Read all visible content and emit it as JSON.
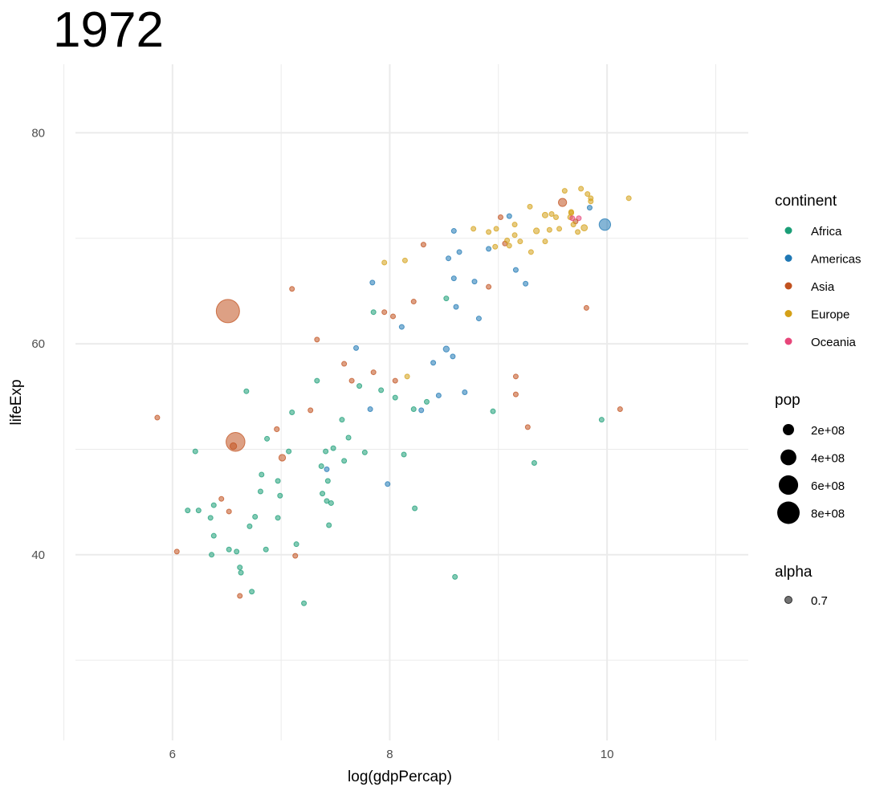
{
  "chart_data": {
    "type": "scatter",
    "title": "1972",
    "xlabel": "log(gdpPercap)",
    "ylabel": "lifeExp",
    "xlim": [
      4.9,
      11.3
    ],
    "ylim": [
      22.4,
      86.5
    ],
    "x_ticks": [
      6,
      8,
      10
    ],
    "x_tick_labels": [
      "6",
      "8",
      "10"
    ],
    "y_ticks": [
      40,
      60,
      80
    ],
    "y_tick_labels": [
      "40",
      "60",
      "80"
    ],
    "x_minor_ticks": [
      5,
      7,
      9,
      11
    ],
    "y_minor_ticks": [
      30,
      50,
      70
    ],
    "grid": true,
    "alpha": 0.55,
    "legend_position": "right",
    "legends": {
      "continent": {
        "title": "continent",
        "items": [
          {
            "label": "Africa",
            "color": "#1b9e77"
          },
          {
            "label": "Americas",
            "color": "#1f78b4"
          },
          {
            "label": "Asia",
            "color": "#c1521f"
          },
          {
            "label": "Europe",
            "color": "#d4a017"
          },
          {
            "label": "Oceania",
            "color": "#e7467a"
          }
        ]
      },
      "pop": {
        "title": "pop",
        "items": [
          {
            "label": "2e+08",
            "value": 200000000
          },
          {
            "label": "4e+08",
            "value": 400000000
          },
          {
            "label": "6e+08",
            "value": 600000000
          },
          {
            "label": "8e+08",
            "value": 800000000
          }
        ]
      },
      "alpha": {
        "title": "alpha",
        "items": [
          {
            "label": "0.7"
          }
        ]
      }
    },
    "series": [
      {
        "name": "Africa",
        "color": "#1b9e77",
        "points": [
          [
            6.68,
            55.5,
            8000000
          ],
          [
            6.21,
            49.8,
            3000000
          ],
          [
            6.14,
            44.2,
            5000000
          ],
          [
            6.24,
            44.2,
            4000000
          ],
          [
            6.38,
            44.7,
            7000000
          ],
          [
            6.35,
            43.5,
            14000000
          ],
          [
            6.38,
            41.8,
            6000000
          ],
          [
            6.36,
            40.0,
            5000000
          ],
          [
            6.52,
            40.5,
            3000000
          ],
          [
            6.59,
            40.3,
            12000000
          ],
          [
            6.62,
            38.8,
            5000000
          ],
          [
            6.63,
            38.3,
            3000000
          ],
          [
            6.73,
            36.5,
            2000000
          ],
          [
            6.71,
            42.7,
            3000000
          ],
          [
            6.76,
            43.6,
            6000000
          ],
          [
            6.82,
            47.6,
            9000000
          ],
          [
            6.81,
            46.0,
            12000000
          ],
          [
            6.87,
            51.0,
            8000000
          ],
          [
            6.86,
            40.5,
            6000000
          ],
          [
            6.97,
            47.0,
            5000000
          ],
          [
            6.97,
            43.5,
            4000000
          ],
          [
            6.99,
            45.6,
            6000000
          ],
          [
            7.07,
            49.8,
            9000000
          ],
          [
            7.1,
            53.5,
            9000000
          ],
          [
            7.14,
            41.0,
            5000000
          ],
          [
            7.21,
            35.4,
            3000000
          ],
          [
            7.33,
            56.5,
            2000000
          ],
          [
            7.37,
            48.4,
            4000000
          ],
          [
            7.38,
            45.8,
            6000000
          ],
          [
            7.41,
            49.8,
            3000000
          ],
          [
            7.42,
            45.1,
            10000000
          ],
          [
            7.43,
            47.0,
            7000000
          ],
          [
            7.44,
            42.8,
            28000000
          ],
          [
            7.46,
            44.9,
            6000000
          ],
          [
            7.48,
            50.1,
            8000000
          ],
          [
            7.56,
            52.8,
            10000000
          ],
          [
            7.58,
            48.9,
            3000000
          ],
          [
            7.62,
            51.1,
            16000000
          ],
          [
            7.72,
            56.0,
            2000000
          ],
          [
            7.77,
            49.7,
            6000000
          ],
          [
            7.85,
            63.0,
            2000000
          ],
          [
            7.92,
            55.6,
            6000000
          ],
          [
            8.05,
            54.9,
            4000000
          ],
          [
            8.13,
            49.5,
            2000000
          ],
          [
            8.22,
            53.8,
            3000000
          ],
          [
            8.23,
            44.4,
            2000000
          ],
          [
            8.34,
            54.5,
            11000000
          ],
          [
            8.52,
            64.3,
            2000000
          ],
          [
            8.6,
            37.9,
            4000000
          ],
          [
            8.95,
            53.6,
            14000000
          ],
          [
            9.33,
            48.7,
            2000000
          ],
          [
            9.95,
            52.8,
            2000000
          ]
        ]
      },
      {
        "name": "Americas",
        "color": "#1f78b4",
        "points": [
          [
            7.42,
            48.1,
            5000000
          ],
          [
            7.69,
            59.6,
            3000000
          ],
          [
            7.82,
            53.8,
            3000000
          ],
          [
            7.98,
            46.7,
            4000000
          ],
          [
            7.84,
            65.8,
            2000000
          ],
          [
            8.11,
            61.6,
            15000000
          ],
          [
            8.29,
            53.7,
            5000000
          ],
          [
            8.4,
            58.2,
            3000000
          ],
          [
            8.45,
            55.1,
            2000000
          ],
          [
            8.52,
            59.5,
            56000000
          ],
          [
            8.58,
            58.8,
            4000000
          ],
          [
            8.59,
            70.7,
            3000000
          ],
          [
            8.59,
            66.2,
            2000000
          ],
          [
            8.61,
            63.5,
            8000000
          ],
          [
            8.69,
            55.4,
            9000000
          ],
          [
            8.64,
            68.7,
            2000000
          ],
          [
            8.54,
            68.1,
            1000000
          ],
          [
            8.78,
            65.9,
            2000000
          ],
          [
            8.82,
            62.4,
            23000000
          ],
          [
            8.91,
            69.0,
            2000000
          ],
          [
            9.16,
            67.0,
            11000000
          ],
          [
            9.25,
            65.7,
            10000000
          ],
          [
            9.1,
            72.1,
            2000000
          ],
          [
            9.84,
            72.9,
            22000000
          ],
          [
            9.98,
            71.3,
            210000000
          ]
        ]
      },
      {
        "name": "Asia",
        "color": "#c1521f",
        "points": [
          [
            5.86,
            53.0,
            8000000
          ],
          [
            6.04,
            40.3,
            6000000
          ],
          [
            6.45,
            45.3,
            30000000
          ],
          [
            6.52,
            44.1,
            6000000
          ],
          [
            6.51,
            63.1,
            862000000
          ],
          [
            6.58,
            50.7,
            567000000
          ],
          [
            6.56,
            50.3,
            70000000
          ],
          [
            6.62,
            36.1,
            10000000
          ],
          [
            6.96,
            51.9,
            40000000
          ],
          [
            7.01,
            49.2,
            70000000
          ],
          [
            7.1,
            65.2,
            6000000
          ],
          [
            7.13,
            39.9,
            5000000
          ],
          [
            7.27,
            53.7,
            2000000
          ],
          [
            7.33,
            60.4,
            33000000
          ],
          [
            7.58,
            58.1,
            30000000
          ],
          [
            7.65,
            56.5,
            3000000
          ],
          [
            7.85,
            57.3,
            8000000
          ],
          [
            7.95,
            63.0,
            14000000
          ],
          [
            8.03,
            62.6,
            20000000
          ],
          [
            8.05,
            56.5,
            3000000
          ],
          [
            8.22,
            64.0,
            10000000
          ],
          [
            8.31,
            69.4,
            9000000
          ],
          [
            8.91,
            65.4,
            3000000
          ],
          [
            9.02,
            72.0,
            3000000
          ],
          [
            9.06,
            69.5,
            3000000
          ],
          [
            9.16,
            56.9,
            7000000
          ],
          [
            9.16,
            55.2,
            14000000
          ],
          [
            9.27,
            52.1,
            2000000
          ],
          [
            9.59,
            73.4,
            107000000
          ],
          [
            9.71,
            71.6,
            3000000
          ],
          [
            9.81,
            63.4,
            1000000
          ],
          [
            10.12,
            53.8,
            5000000
          ]
        ]
      },
      {
        "name": "Europe",
        "color": "#d4a017",
        "points": [
          [
            7.95,
            67.7,
            2000000
          ],
          [
            8.14,
            67.9,
            3000000
          ],
          [
            8.16,
            56.9,
            36000000
          ],
          [
            8.77,
            70.9,
            4000000
          ],
          [
            8.91,
            70.6,
            4000000
          ],
          [
            8.97,
            69.2,
            10000000
          ],
          [
            8.98,
            70.9,
            14000000
          ],
          [
            9.08,
            69.8,
            3000000
          ],
          [
            9.15,
            71.3,
            4000000
          ],
          [
            9.1,
            69.3,
            3000000
          ],
          [
            9.15,
            70.3,
            8000000
          ],
          [
            9.2,
            69.7,
            9000000
          ],
          [
            9.29,
            73.0,
            8000000
          ],
          [
            9.35,
            70.7,
            54000000
          ],
          [
            9.47,
            70.8,
            8000000
          ],
          [
            9.3,
            68.7,
            3000000
          ],
          [
            9.49,
            72.3,
            10000000
          ],
          [
            9.53,
            72.0,
            34000000
          ],
          [
            9.43,
            72.2,
            50000000
          ],
          [
            9.43,
            69.7,
            3000000
          ],
          [
            9.56,
            70.9,
            3000000
          ],
          [
            9.61,
            74.5,
            3000000
          ],
          [
            9.67,
            72.5,
            3000000
          ],
          [
            9.66,
            72.0,
            33000000
          ],
          [
            9.67,
            72.4,
            40000000
          ],
          [
            9.69,
            71.3,
            3000000
          ],
          [
            9.73,
            70.6,
            10000000
          ],
          [
            9.76,
            74.7,
            8000000
          ],
          [
            9.79,
            71.0,
            62000000
          ],
          [
            9.85,
            73.8,
            4000000
          ],
          [
            9.82,
            74.2,
            3000000
          ],
          [
            9.85,
            73.5,
            4000000
          ],
          [
            10.2,
            73.8,
            6000000
          ]
        ]
      },
      {
        "name": "Oceania",
        "color": "#e7467a",
        "points": [
          [
            9.74,
            71.9,
            13000000
          ],
          [
            9.68,
            71.9,
            3000000
          ]
        ]
      }
    ]
  }
}
